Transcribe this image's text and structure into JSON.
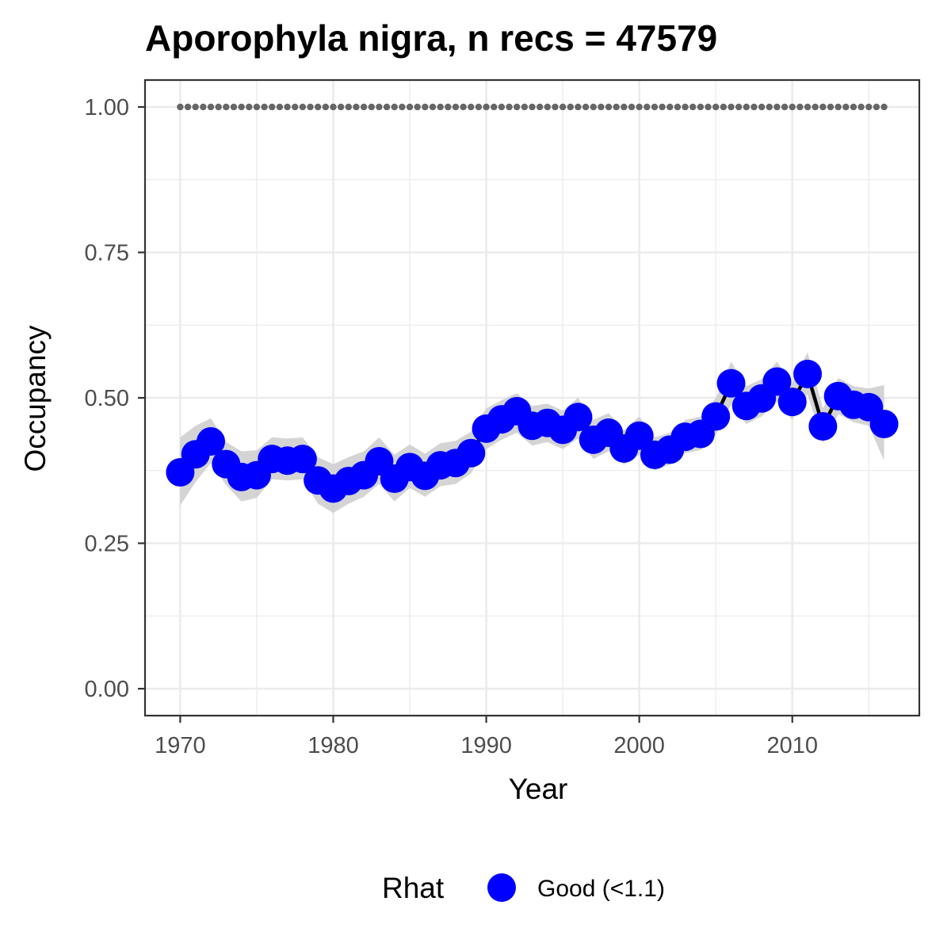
{
  "chart_data": {
    "type": "line",
    "title": "Aporophyla nigra, n recs = 47579",
    "xlabel": "Year",
    "ylabel": "Occupancy",
    "xlim": [
      1967.7,
      1917.8
    ],
    "ylim": [
      -0.0463,
      1.0463
    ],
    "x_ticks": [
      1970,
      1980,
      1990,
      2000,
      2010
    ],
    "x_tick_labels": [
      "1970",
      "1980",
      "1990",
      "2000",
      "2010"
    ],
    "y_ticks": [
      0,
      0.25,
      0.5,
      0.75,
      1.0
    ],
    "y_tick_labels": [
      "0.00",
      "0.25",
      "0.50",
      "0.75",
      "1.00"
    ],
    "grid": true,
    "x": [
      1970,
      1971,
      1972,
      1973,
      1974,
      1975,
      1976,
      1977,
      1978,
      1979,
      1980,
      1981,
      1982,
      1983,
      1984,
      1985,
      1986,
      1987,
      1988,
      1989,
      1990,
      1991,
      1992,
      1993,
      1994,
      1995,
      1996,
      1997,
      1998,
      1999,
      2000,
      2001,
      2002,
      2003,
      2004,
      2005,
      2006,
      2007,
      2008,
      2009,
      2010,
      2011,
      2012,
      2013,
      2014,
      2015,
      2016
    ],
    "series": [
      {
        "values": [
          0.372,
          0.403,
          0.425,
          0.386,
          0.364,
          0.367,
          0.395,
          0.392,
          0.395,
          0.358,
          0.344,
          0.357,
          0.367,
          0.391,
          0.361,
          0.381,
          0.366,
          0.384,
          0.388,
          0.405,
          0.447,
          0.463,
          0.477,
          0.452,
          0.457,
          0.445,
          0.467,
          0.428,
          0.44,
          0.413,
          0.435,
          0.402,
          0.411,
          0.433,
          0.438,
          0.468,
          0.525,
          0.486,
          0.499,
          0.528,
          0.493,
          0.541,
          0.451,
          0.503,
          0.488,
          0.484,
          0.455
        ],
        "lower": [
          0.315,
          0.355,
          0.388,
          0.35,
          0.322,
          0.328,
          0.36,
          0.358,
          0.36,
          0.318,
          0.302,
          0.318,
          0.33,
          0.352,
          0.322,
          0.345,
          0.33,
          0.348,
          0.352,
          0.37,
          0.412,
          0.428,
          0.44,
          0.418,
          0.424,
          0.412,
          0.43,
          0.395,
          0.408,
          0.385,
          0.402,
          0.375,
          0.385,
          0.405,
          0.41,
          0.436,
          0.488,
          0.455,
          0.468,
          0.494,
          0.462,
          0.506,
          0.422,
          0.472,
          0.458,
          0.452,
          0.392
        ],
        "upper": [
          0.432,
          0.452,
          0.465,
          0.424,
          0.408,
          0.41,
          0.432,
          0.43,
          0.432,
          0.398,
          0.386,
          0.398,
          0.408,
          0.432,
          0.402,
          0.42,
          0.404,
          0.422,
          0.426,
          0.442,
          0.482,
          0.496,
          0.508,
          0.486,
          0.49,
          0.478,
          0.5,
          0.462,
          0.474,
          0.444,
          0.468,
          0.432,
          0.44,
          0.462,
          0.468,
          0.5,
          0.562,
          0.52,
          0.532,
          0.562,
          0.526,
          0.578,
          0.482,
          0.534,
          0.52,
          0.516,
          0.522
        ]
      }
    ],
    "reference_line": {
      "y": 1.0,
      "style": "dotted"
    },
    "legend": {
      "title": "Rhat",
      "entries": [
        "Good (<1.1)"
      ],
      "position": "bottom"
    },
    "colors": {
      "point": "#0000ff",
      "line": "#000000",
      "ribbon": "#cccccc",
      "reference": "#666666",
      "grid": "#ebebeb",
      "panel_border": "#333333"
    }
  }
}
